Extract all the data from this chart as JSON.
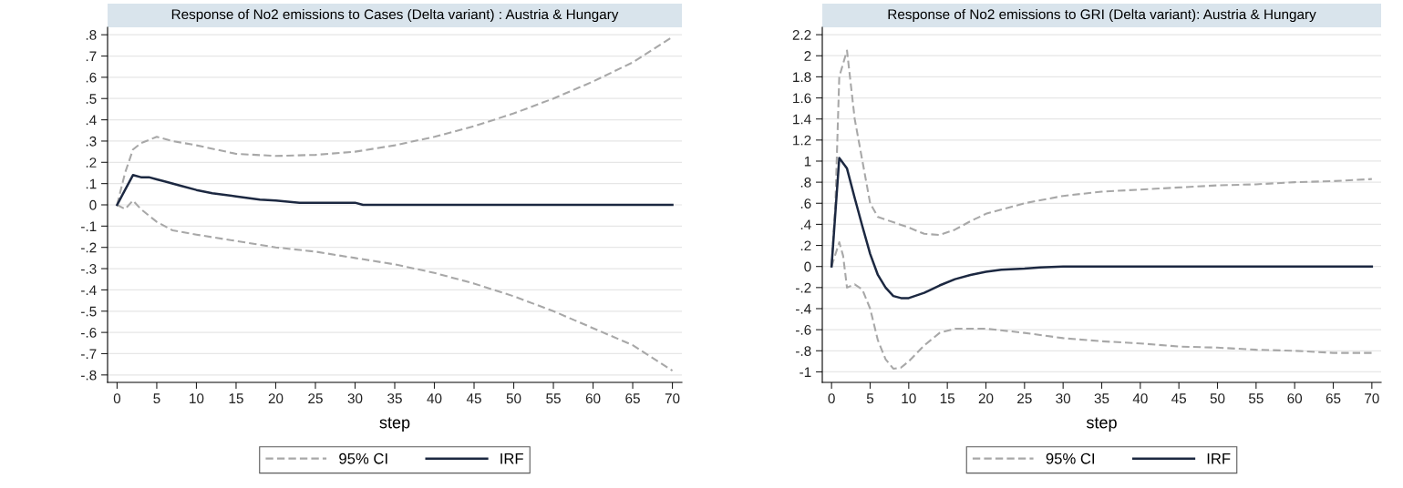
{
  "chart_data": [
    {
      "type": "line",
      "title": "Response of No2 emissions to Cases (Delta variant) : Austria & Hungary",
      "xlabel": "step",
      "xlim": [
        -1.2,
        71.2
      ],
      "xticks": [
        0,
        5,
        10,
        15,
        20,
        25,
        30,
        35,
        40,
        45,
        50,
        55,
        60,
        65,
        70
      ],
      "ylim": [
        -0.835,
        0.835
      ],
      "yticks": [
        {
          "value": -0.8,
          "label": "-.8"
        },
        {
          "value": -0.7,
          "label": "-.7"
        },
        {
          "value": -0.6,
          "label": "-.6"
        },
        {
          "value": -0.5,
          "label": "-.5"
        },
        {
          "value": -0.4,
          "label": "-.4"
        },
        {
          "value": -0.3,
          "label": "-.3"
        },
        {
          "value": -0.2,
          "label": "-.2"
        },
        {
          "value": -0.1,
          "label": "-.1"
        },
        {
          "value": 0,
          "label": "0"
        },
        {
          "value": 0.1,
          "label": ".1"
        },
        {
          "value": 0.2,
          "label": ".2"
        },
        {
          "value": 0.3,
          "label": ".3"
        },
        {
          "value": 0.4,
          "label": ".4"
        },
        {
          "value": 0.5,
          "label": ".5"
        },
        {
          "value": 0.6,
          "label": ".6"
        },
        {
          "value": 0.7,
          "label": ".7"
        },
        {
          "value": 0.8,
          "label": ".8"
        }
      ],
      "grid": "y",
      "legend": "bottom",
      "series": [
        {
          "name": "95% CI",
          "color": "#a8a8a8",
          "line_style": "dashed",
          "x": [
            0,
            1,
            2,
            3,
            5,
            7,
            10,
            15,
            20,
            25,
            30,
            35,
            40,
            45,
            50,
            55,
            60,
            65,
            70
          ],
          "values": [
            0,
            0.15,
            0.26,
            0.29,
            0.32,
            0.3,
            0.28,
            0.24,
            0.23,
            0.235,
            0.25,
            0.28,
            0.32,
            0.37,
            0.43,
            0.5,
            0.58,
            0.67,
            0.79
          ]
        },
        {
          "color": "#a8a8a8",
          "line_style": "dashed",
          "x": [
            0,
            1,
            2,
            3,
            5,
            7,
            10,
            15,
            20,
            25,
            30,
            35,
            40,
            45,
            50,
            55,
            60,
            65,
            70
          ],
          "values": [
            0,
            -0.02,
            0.02,
            -0.02,
            -0.08,
            -0.12,
            -0.14,
            -0.17,
            -0.2,
            -0.22,
            -0.25,
            -0.28,
            -0.32,
            -0.37,
            -0.43,
            -0.5,
            -0.58,
            -0.66,
            -0.78
          ]
        },
        {
          "name": "IRF",
          "color": "#1c2841",
          "line_style": "solid",
          "x": [
            0,
            1,
            2,
            3,
            4,
            5,
            6,
            8,
            10,
            12,
            15,
            18,
            20,
            23,
            25,
            30,
            31,
            70
          ],
          "values": [
            0,
            0.07,
            0.14,
            0.13,
            0.13,
            0.12,
            0.11,
            0.09,
            0.07,
            0.055,
            0.04,
            0.025,
            0.02,
            0.01,
            0.01,
            0.01,
            0,
            0
          ]
        }
      ]
    },
    {
      "type": "line",
      "title": "Response of No2 emissions to GRI (Delta variant): Austria & Hungary",
      "xlabel": "step",
      "xlim": [
        -1.2,
        71.2
      ],
      "xticks": [
        0,
        5,
        10,
        15,
        20,
        25,
        30,
        35,
        40,
        45,
        50,
        55,
        60,
        65,
        70
      ],
      "ylim": [
        -1.1,
        2.27
      ],
      "yticks": [
        {
          "value": -1,
          "label": "-1"
        },
        {
          "value": -0.8,
          "label": "-.8"
        },
        {
          "value": -0.6,
          "label": "-.6"
        },
        {
          "value": -0.4,
          "label": "-.4"
        },
        {
          "value": -0.2,
          "label": "-.2"
        },
        {
          "value": 0,
          "label": "0"
        },
        {
          "value": 0.2,
          "label": ".2"
        },
        {
          "value": 0.4,
          "label": ".4"
        },
        {
          "value": 0.6,
          "label": ".6"
        },
        {
          "value": 0.8,
          "label": ".8"
        },
        {
          "value": 1,
          "label": "1"
        },
        {
          "value": 1.2,
          "label": "1.2"
        },
        {
          "value": 1.4,
          "label": "1.4"
        },
        {
          "value": 1.6,
          "label": "1.6"
        },
        {
          "value": 1.8,
          "label": "1.8"
        },
        {
          "value": 2,
          "label": "2"
        },
        {
          "value": 2.2,
          "label": "2.2"
        }
      ],
      "grid": "y",
      "legend": "bottom",
      "series": [
        {
          "name": "95% CI",
          "color": "#a8a8a8",
          "line_style": "dashed",
          "x": [
            0,
            0.5,
            1,
            2,
            3,
            4,
            5,
            6,
            8,
            10,
            12,
            14,
            16,
            18,
            20,
            25,
            30,
            35,
            40,
            45,
            50,
            55,
            60,
            65,
            70
          ],
          "values": [
            0,
            0.6,
            1.8,
            2.05,
            1.4,
            1.0,
            0.6,
            0.47,
            0.42,
            0.37,
            0.31,
            0.3,
            0.35,
            0.43,
            0.5,
            0.6,
            0.67,
            0.71,
            0.73,
            0.75,
            0.77,
            0.78,
            0.8,
            0.81,
            0.83
          ]
        },
        {
          "color": "#a8a8a8",
          "line_style": "dashed",
          "x": [
            0,
            1,
            1.5,
            2,
            3,
            4,
            5,
            6,
            7,
            8,
            9,
            10,
            12,
            14,
            16,
            20,
            25,
            30,
            35,
            40,
            45,
            50,
            55,
            60,
            65,
            70
          ],
          "values": [
            0,
            0.23,
            0.1,
            -0.2,
            -0.17,
            -0.22,
            -0.4,
            -0.7,
            -0.88,
            -0.97,
            -0.96,
            -0.9,
            -0.75,
            -0.63,
            -0.59,
            -0.59,
            -0.63,
            -0.68,
            -0.71,
            -0.73,
            -0.76,
            -0.77,
            -0.79,
            -0.8,
            -0.82,
            -0.82
          ]
        },
        {
          "name": "IRF",
          "color": "#1c2841",
          "line_style": "solid",
          "x": [
            0,
            1,
            2,
            3,
            4,
            5,
            6,
            7,
            8,
            9,
            10,
            12,
            14,
            16,
            18,
            20,
            22,
            25,
            27,
            30,
            70
          ],
          "values": [
            0,
            1.03,
            0.93,
            0.65,
            0.38,
            0.12,
            -0.08,
            -0.2,
            -0.28,
            -0.3,
            -0.3,
            -0.25,
            -0.18,
            -0.12,
            -0.08,
            -0.05,
            -0.03,
            -0.02,
            -0.01,
            0,
            0
          ]
        }
      ]
    }
  ]
}
